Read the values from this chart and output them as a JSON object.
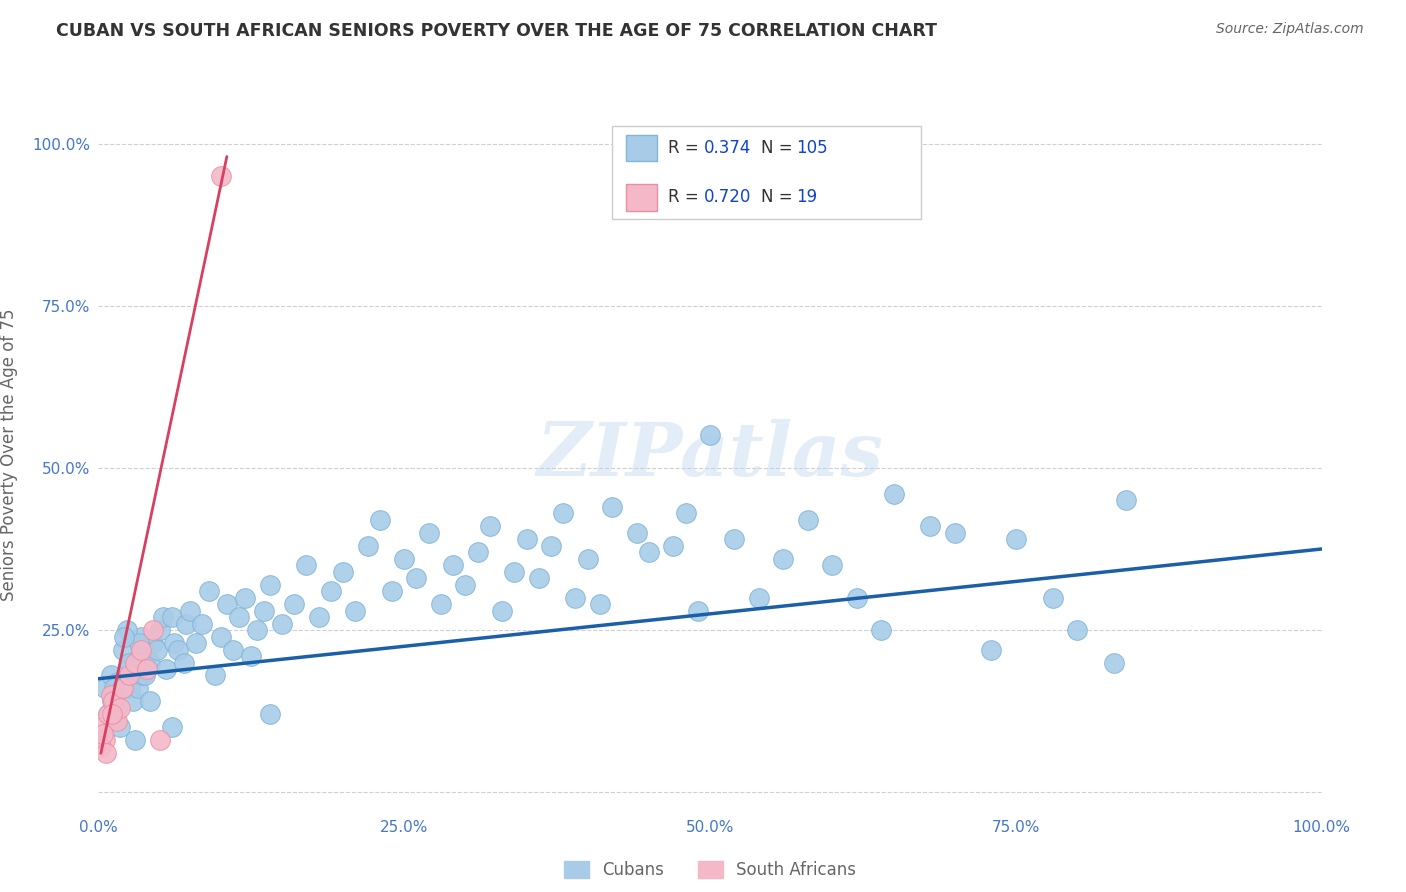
{
  "title": "CUBAN VS SOUTH AFRICAN SENIORS POVERTY OVER THE AGE OF 75 CORRELATION CHART",
  "source": "Source: ZipAtlas.com",
  "ylabel": "Seniors Poverty Over the Age of 75",
  "xlim": [
    0,
    100
  ],
  "ylim": [
    -3,
    107
  ],
  "xticks": [
    0,
    25,
    50,
    75,
    100
  ],
  "yticks": [
    0,
    25,
    50,
    75,
    100
  ],
  "xticklabels": [
    "0.0%",
    "25.0%",
    "50.0%",
    "75.0%",
    "100.0%"
  ],
  "yticklabels": [
    "",
    "25.0%",
    "50.0%",
    "75.0%",
    "100.0%"
  ],
  "cuban_color": "#a8cce8",
  "cuban_edge": "#80b4d8",
  "sa_color": "#f5b8c8",
  "sa_edge": "#e890a0",
  "trend_blue": "#1a5fa8",
  "trend_pink": "#d84060",
  "R_cuban": "0.374",
  "N_cuban": "105",
  "R_sa": "0.720",
  "N_sa": "19",
  "watermark": "ZIPatlas",
  "background": "#ffffff",
  "grid_color": "#d0d0d0",
  "title_color": "#333333",
  "axis_label_color": "#666666",
  "tick_color": "#4477cc",
  "legend_val_color": "#1144cc",
  "cuban_x": [
    0.5,
    0.8,
    1.0,
    1.2,
    1.5,
    1.6,
    1.8,
    2.0,
    2.2,
    2.4,
    2.5,
    2.6,
    2.8,
    3.0,
    3.2,
    3.4,
    3.5,
    3.6,
    3.8,
    4.0,
    4.2,
    4.5,
    4.8,
    5.0,
    5.3,
    5.5,
    6.0,
    6.2,
    6.5,
    7.0,
    7.2,
    7.5,
    8.0,
    8.5,
    9.0,
    9.5,
    10.0,
    10.5,
    11.0,
    11.5,
    12.0,
    12.5,
    13.0,
    13.5,
    14.0,
    15.0,
    16.0,
    17.0,
    18.0,
    19.0,
    20.0,
    21.0,
    22.0,
    23.0,
    24.0,
    25.0,
    26.0,
    27.0,
    28.0,
    29.0,
    30.0,
    31.0,
    32.0,
    33.0,
    34.0,
    35.0,
    36.0,
    37.0,
    38.0,
    39.0,
    40.0,
    41.0,
    42.0,
    44.0,
    45.0,
    47.0,
    48.0,
    49.0,
    50.0,
    52.0,
    54.0,
    56.0,
    58.0,
    60.0,
    62.0,
    64.0,
    65.0,
    68.0,
    70.0,
    73.0,
    75.0,
    78.0,
    80.0,
    83.0,
    84.0,
    6.0,
    3.0,
    14.0,
    1.3,
    1.1,
    2.3,
    1.9,
    3.3,
    4.2,
    2.1
  ],
  "cuban_y": [
    16,
    12,
    18,
    15,
    13,
    17,
    10,
    22,
    17,
    19,
    20,
    16,
    14,
    19,
    16,
    21,
    24,
    18,
    18,
    21,
    20,
    23,
    22,
    25,
    27,
    19,
    27,
    23,
    22,
    20,
    26,
    28,
    23,
    26,
    31,
    18,
    24,
    29,
    22,
    27,
    30,
    21,
    25,
    28,
    32,
    26,
    29,
    35,
    27,
    31,
    34,
    28,
    38,
    42,
    31,
    36,
    33,
    40,
    29,
    35,
    32,
    37,
    41,
    28,
    34,
    39,
    33,
    38,
    43,
    30,
    36,
    29,
    44,
    40,
    37,
    38,
    43,
    28,
    55,
    39,
    30,
    36,
    42,
    35,
    30,
    25,
    46,
    41,
    40,
    22,
    39,
    30,
    25,
    20,
    45,
    10,
    8,
    12,
    16,
    14,
    25,
    16,
    23,
    14,
    24
  ],
  "sa_x": [
    0.3,
    0.5,
    0.8,
    1.0,
    1.2,
    1.5,
    1.8,
    2.0,
    2.5,
    3.0,
    3.5,
    4.0,
    4.5,
    5.0,
    0.2,
    0.4,
    10.0,
    0.6,
    1.1
  ],
  "sa_y": [
    10,
    8,
    12,
    15,
    14,
    11,
    13,
    16,
    18,
    20,
    22,
    19,
    25,
    8,
    7,
    9,
    95,
    6,
    12
  ],
  "blue_line_x": [
    0,
    100
  ],
  "blue_line_y": [
    17.5,
    37.5
  ],
  "pink_line_x": [
    0.2,
    10.5
  ],
  "pink_line_y": [
    6,
    98
  ]
}
